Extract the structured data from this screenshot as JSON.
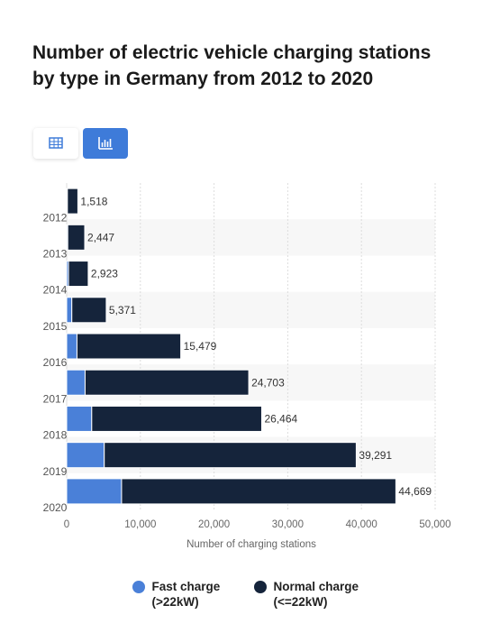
{
  "chart_data": {
    "type": "stacked-bar-horizontal",
    "title": "Number of electric vehicle charging stations by type in Germany from 2012 to 2020",
    "categories": [
      "2012",
      "2013",
      "2014",
      "2015",
      "2016",
      "2017",
      "2018",
      "2019",
      "2020"
    ],
    "series": [
      {
        "name": "Fast charge (>22kW)",
        "color": "#4a80d8",
        "values": [
          100,
          150,
          250,
          700,
          1400,
          2500,
          3400,
          5100,
          7450
        ]
      },
      {
        "name": "Normal charge (<=22kW)",
        "color": "#15243b",
        "values": [
          1418,
          2297,
          2673,
          4671,
          14079,
          22203,
          23064,
          34191,
          37219
        ]
      }
    ],
    "totals": [
      1518,
      2447,
      2923,
      5371,
      15479,
      24703,
      26464,
      39291,
      44669
    ],
    "total_labels": [
      "1,518",
      "2,447",
      "2,923",
      "5,371",
      "15,479",
      "24,703",
      "26,464",
      "39,291",
      "44,669"
    ],
    "xlabel": "Number of charging stations",
    "xlim": [
      0,
      50000
    ],
    "xticks": [
      0,
      {
        "value": 10000,
        "label": "10,000"
      },
      {
        "value": 20000,
        "label": "20,000"
      },
      {
        "value": 30000,
        "label": "30,000"
      },
      {
        "value": 40000,
        "label": "40,000"
      },
      {
        "value": 50000,
        "label": "50,000"
      }
    ],
    "grid": true
  }
}
